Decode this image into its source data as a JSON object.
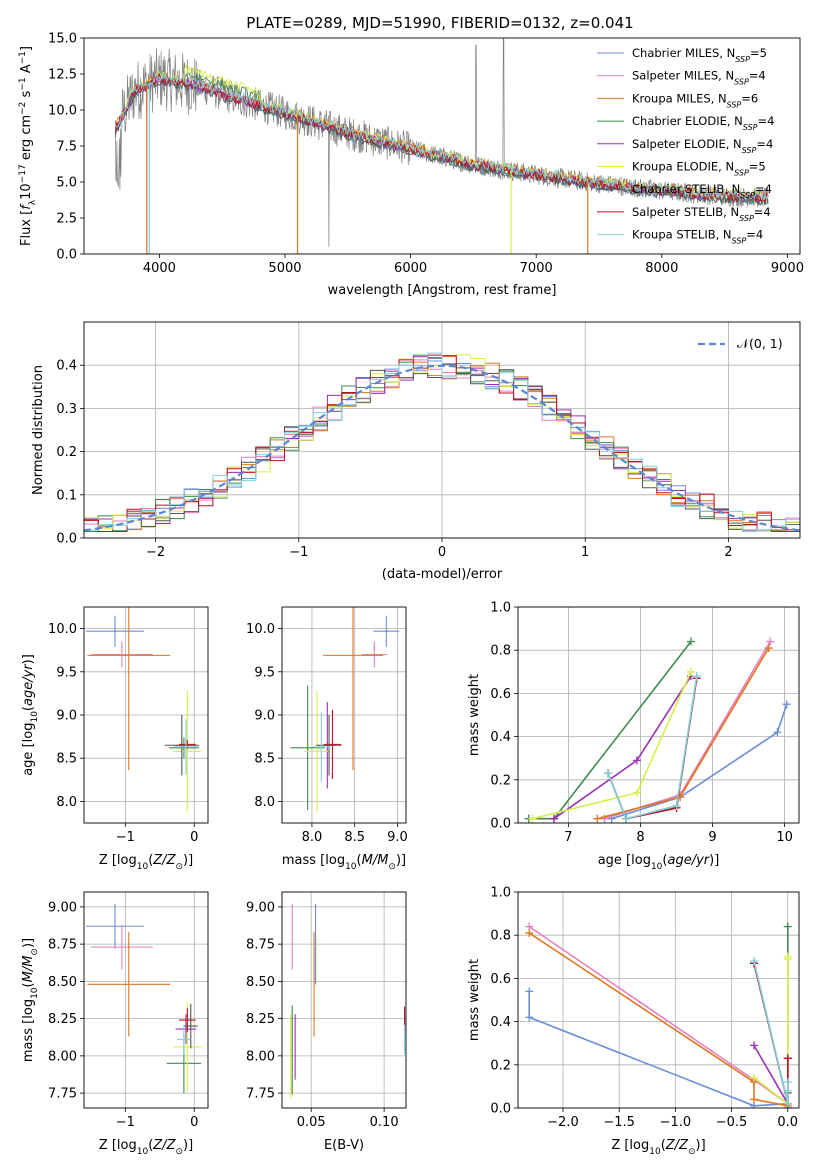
{
  "figure_title": "PLATE=0289, MJD=51990, FIBERID=0132, z=0.041",
  "colors": {
    "Chabrier MILES": "#6a8fd8",
    "Salpeter MILES": "#e77fbf",
    "Kroupa MILES": "#e0751d",
    "Chabrier ELODIE": "#3f8a4e",
    "Salpeter ELODIE": "#9b30b5",
    "Kroupa ELODIE": "#d6ee4a",
    "Chabrier STELIB": "#555555",
    "Salpeter STELIB": "#c0121b",
    "Kroupa STELIB": "#7fd1de",
    "data": "#808080",
    "normal": "#5b86d4"
  },
  "chart_data": [
    {
      "id": "spectrum",
      "type": "line",
      "title": "PLATE=0289, MJD=51990, FIBERID=0132, z=0.041",
      "xlabel": "wavelength [Angstrom, rest frame]",
      "ylabel": "Flux [fλ 10⁻¹⁷ erg cm⁻² s⁻¹ A⁻¹]",
      "xlim": [
        3400,
        9100
      ],
      "ylim": [
        0,
        15
      ],
      "xticks": [
        4000,
        5000,
        6000,
        7000,
        8000,
        9000
      ],
      "yticks": [
        0.0,
        2.5,
        5.0,
        7.5,
        10.0,
        12.5,
        15.0
      ],
      "grid": false,
      "legend_position": "top-right",
      "legend": [
        "Chabrier MILES, N_SSP=5",
        "Salpeter MILES, N_SSP=4",
        "Kroupa MILES, N_SSP=6",
        "Chabrier ELODIE, N_SSP=4",
        "Salpeter ELODIE, N_SSP=4",
        "Kroupa ELODIE, N_SSP=5",
        "Chabrier STELIB, N_SSP=4",
        "Salpeter STELIB, N_SSP=4",
        "Kroupa STELIB, N_SSP=4"
      ],
      "continuum_x": [
        3650,
        3800,
        4000,
        4300,
        4600,
        5000,
        5500,
        6000,
        6500,
        7000,
        7500,
        8000,
        8500,
        8850
      ],
      "continuum_y": [
        8.6,
        11.3,
        12.2,
        11.7,
        10.8,
        9.8,
        8.4,
        7.3,
        6.2,
        5.5,
        4.9,
        4.4,
        4.0,
        3.9
      ]
    },
    {
      "id": "residuals",
      "type": "line",
      "xlabel": "(data-model)/error",
      "ylabel": "Normed distribution",
      "xlim": [
        -2.5,
        2.5
      ],
      "ylim": [
        0,
        0.5
      ],
      "xticks": [
        -2,
        -1,
        0,
        1,
        2
      ],
      "yticks": [
        0.0,
        0.1,
        0.2,
        0.3,
        0.4
      ],
      "grid": true,
      "legend_position": "top-right",
      "legend": [
        "N(0,1)"
      ],
      "bin_width": 0.1
    },
    {
      "id": "age_vs_Z",
      "type": "scatter",
      "xlabel": "Z [log10(Z/Z⊙)]",
      "ylabel": "age [log10(age/yr)]",
      "xlim": [
        -1.6,
        0.2
      ],
      "ylim": [
        7.75,
        10.25
      ],
      "xticks": [
        -1,
        0
      ],
      "yticks": [
        8.0,
        8.5,
        9.0,
        9.5,
        10.0
      ],
      "grid": true,
      "errorbars": [
        {
          "series": "Chabrier MILES",
          "x": -1.15,
          "y": 9.97,
          "xerr": 0.42,
          "yerr": 0.18
        },
        {
          "series": "Salpeter MILES",
          "x": -1.05,
          "y": 9.7,
          "xerr": 0.45,
          "yerr": 0.15
        },
        {
          "series": "Kroupa MILES",
          "x": -0.95,
          "y": 9.69,
          "xerr": 0.6,
          "yerr": 1.33
        },
        {
          "series": "Chabrier ELODIE",
          "x": -0.15,
          "y": 8.62,
          "xerr": 0.22,
          "yerr": 0.12
        },
        {
          "series": "Salpeter ELODIE",
          "x": -0.12,
          "y": 8.65,
          "xerr": 0.15,
          "yerr": 0.08
        },
        {
          "series": "Kroupa ELODIE",
          "x": -0.1,
          "y": 8.58,
          "xerr": 0.2,
          "yerr": 0.7
        },
        {
          "series": "Chabrier STELIB",
          "x": -0.18,
          "y": 8.65,
          "xerr": 0.25,
          "yerr": 0.35
        },
        {
          "series": "Salpeter STELIB",
          "x": -0.1,
          "y": 8.66,
          "xerr": 0.12,
          "yerr": 0.05
        },
        {
          "series": "Kroupa STELIB",
          "x": -0.12,
          "y": 8.63,
          "xerr": 0.18,
          "yerr": 0.32
        }
      ]
    },
    {
      "id": "age_vs_mass",
      "type": "scatter",
      "xlabel": "mass [log10(M/M⊙)]",
      "ylabel": "",
      "xlim": [
        7.65,
        9.1
      ],
      "ylim": [
        7.75,
        10.25
      ],
      "xticks": [
        8.0,
        8.5,
        9.0
      ],
      "yticks": [
        8.0,
        8.5,
        9.0,
        9.5,
        10.0
      ],
      "grid": true,
      "errorbars": [
        {
          "series": "Chabrier MILES",
          "x": 8.87,
          "y": 9.97,
          "xerr": 0.15,
          "yerr": 0.18
        },
        {
          "series": "Salpeter MILES",
          "x": 8.73,
          "y": 9.7,
          "xerr": 0.15,
          "yerr": 0.15
        },
        {
          "series": "Kroupa MILES",
          "x": 8.48,
          "y": 9.69,
          "xerr": 0.35,
          "yerr": 1.33
        },
        {
          "series": "Chabrier ELODIE",
          "x": 7.95,
          "y": 8.62,
          "xerr": 0.2,
          "yerr": 0.72
        },
        {
          "series": "Salpeter ELODIE",
          "x": 8.18,
          "y": 8.65,
          "xerr": 0.1,
          "yerr": 0.5
        },
        {
          "series": "Kroupa ELODIE",
          "x": 8.06,
          "y": 8.58,
          "xerr": 0.15,
          "yerr": 0.7
        },
        {
          "series": "Chabrier STELIB",
          "x": 8.2,
          "y": 8.65,
          "xerr": 0.15,
          "yerr": 0.35
        },
        {
          "series": "Salpeter STELIB",
          "x": 8.24,
          "y": 8.66,
          "xerr": 0.1,
          "yerr": 0.4
        },
        {
          "series": "Kroupa STELIB",
          "x": 8.11,
          "y": 8.63,
          "xerr": 0.1,
          "yerr": 0.4
        }
      ]
    },
    {
      "id": "weight_vs_age",
      "type": "line",
      "xlabel": "age [log10(age/yr)]",
      "ylabel": "mass weight",
      "xlim": [
        6.3,
        10.2
      ],
      "ylim": [
        0,
        1
      ],
      "xticks": [
        7,
        8,
        9,
        10
      ],
      "yticks": [
        0.0,
        0.2,
        0.4,
        0.6,
        0.8,
        1.0
      ],
      "grid": true,
      "series": [
        {
          "name": "Chabrier MILES",
          "x": [
            7.6,
            8.55,
            9.9,
            10.03
          ],
          "y": [
            0.02,
            0.12,
            0.42,
            0.55
          ]
        },
        {
          "name": "Salpeter MILES",
          "x": [
            7.5,
            8.55,
            9.8
          ],
          "y": [
            0.02,
            0.13,
            0.84
          ]
        },
        {
          "name": "Kroupa MILES",
          "x": [
            7.4,
            8.55,
            9.78
          ],
          "y": [
            0.02,
            0.12,
            0.81
          ]
        },
        {
          "name": "Chabrier ELODIE",
          "x": [
            6.45,
            6.8,
            8.7
          ],
          "y": [
            0.02,
            0.02,
            0.84
          ]
        },
        {
          "name": "Salpeter ELODIE",
          "x": [
            6.8,
            7.95,
            8.7
          ],
          "y": [
            0.02,
            0.29,
            0.68
          ]
        },
        {
          "name": "Kroupa ELODIE",
          "x": [
            6.5,
            7.95,
            8.7
          ],
          "y": [
            0.02,
            0.14,
            0.7
          ]
        },
        {
          "name": "Chabrier STELIB",
          "x": [
            7.55,
            7.8,
            8.5,
            8.78
          ],
          "y": [
            0.23,
            0.02,
            0.07,
            0.67
          ]
        },
        {
          "name": "Salpeter STELIB",
          "x": [
            7.55,
            7.8,
            8.5,
            8.78
          ],
          "y": [
            0.23,
            0.02,
            0.07,
            0.67
          ]
        },
        {
          "name": "Kroupa STELIB",
          "x": [
            7.55,
            7.8,
            8.5,
            8.78
          ],
          "y": [
            0.23,
            0.02,
            0.08,
            0.68
          ]
        }
      ]
    },
    {
      "id": "mass_vs_Z",
      "type": "scatter",
      "xlabel": "Z [log10(Z/Z⊙)]",
      "ylabel": "mass [log10(M/M⊙)]",
      "xlim": [
        -1.6,
        0.2
      ],
      "ylim": [
        7.65,
        9.1
      ],
      "xticks": [
        -1,
        0
      ],
      "yticks": [
        7.75,
        8.0,
        8.25,
        8.5,
        8.75,
        9.0
      ],
      "grid": true,
      "errorbars": [
        {
          "series": "Chabrier MILES",
          "x": -1.15,
          "y": 8.87,
          "xerr": 0.42,
          "yerr": 0.15
        },
        {
          "series": "Salpeter MILES",
          "x": -1.05,
          "y": 8.73,
          "xerr": 0.45,
          "yerr": 0.15
        },
        {
          "series": "Kroupa MILES",
          "x": -0.95,
          "y": 8.48,
          "xerr": 0.6,
          "yerr": 0.35
        },
        {
          "series": "Chabrier ELODIE",
          "x": -0.15,
          "y": 7.95,
          "xerr": 0.25,
          "yerr": 0.2
        },
        {
          "series": "Salpeter ELODIE",
          "x": -0.12,
          "y": 8.18,
          "xerr": 0.15,
          "yerr": 0.1
        },
        {
          "series": "Kroupa ELODIE",
          "x": -0.1,
          "y": 8.06,
          "xerr": 0.2,
          "yerr": 0.3
        },
        {
          "series": "Chabrier STELIB",
          "x": -0.05,
          "y": 8.2,
          "xerr": 0.1,
          "yerr": 0.15
        },
        {
          "series": "Salpeter STELIB",
          "x": -0.1,
          "y": 8.24,
          "xerr": 0.12,
          "yerr": 0.08
        },
        {
          "series": "Kroupa STELIB",
          "x": -0.15,
          "y": 8.11,
          "xerr": 0.1,
          "yerr": 0.1
        }
      ]
    },
    {
      "id": "mass_vs_ebv",
      "type": "scatter",
      "xlabel": "E(B-V)",
      "ylabel": "",
      "xlim": [
        0.03,
        0.115
      ],
      "ylim": [
        7.65,
        9.1
      ],
      "xticks": [
        0.05,
        0.1
      ],
      "yticks": [
        7.75,
        8.0,
        8.25,
        8.5,
        8.75,
        9.0
      ],
      "grid": true,
      "errorbars": [
        {
          "series": "Chabrier MILES",
          "x": 0.053,
          "y": 8.75,
          "xerr": 0,
          "yerr": 0.27
        },
        {
          "series": "Salpeter MILES",
          "x": 0.037,
          "y": 8.8,
          "xerr": 0,
          "yerr": 0.22
        },
        {
          "series": "Kroupa MILES",
          "x": 0.052,
          "y": 8.48,
          "xerr": 0,
          "yerr": 0.35
        },
        {
          "series": "Chabrier ELODIE",
          "x": 0.037,
          "y": 8.04,
          "xerr": 0,
          "yerr": 0.3
        },
        {
          "series": "Salpeter ELODIE",
          "x": 0.039,
          "y": 8.06,
          "xerr": 0,
          "yerr": 0.22
        },
        {
          "series": "Kroupa ELODIE",
          "x": 0.036,
          "y": 8.0,
          "xerr": 0,
          "yerr": 0.28
        },
        {
          "series": "Chabrier STELIB",
          "x": 0.114,
          "y": 8.2,
          "xerr": 0,
          "yerr": 0.1
        },
        {
          "series": "Salpeter STELIB",
          "x": 0.114,
          "y": 8.25,
          "xerr": 0,
          "yerr": 0.08
        },
        {
          "series": "Kroupa STELIB",
          "x": 0.114,
          "y": 8.11,
          "xerr": 0,
          "yerr": 0.1
        }
      ]
    },
    {
      "id": "weight_vs_Z",
      "type": "line",
      "xlabel": "Z [log10(Z/Z⊙)]",
      "ylabel": "mass weight",
      "xlim": [
        -2.4,
        0.1
      ],
      "ylim": [
        0,
        1
      ],
      "xticks": [
        -2.0,
        -1.5,
        -1.0,
        -0.5,
        0.0
      ],
      "yticks": [
        0.0,
        0.2,
        0.4,
        0.6,
        0.8,
        1.0
      ],
      "grid": true,
      "series": [
        {
          "name": "Chabrier MILES",
          "x": [
            -2.3,
            -2.3,
            -0.3,
            0.0
          ],
          "y": [
            0.54,
            0.42,
            0.01,
            0.02
          ]
        },
        {
          "name": "Salpeter MILES",
          "x": [
            -2.3,
            -0.3,
            0.0
          ],
          "y": [
            0.84,
            0.13,
            0.02
          ]
        },
        {
          "name": "Kroupa MILES",
          "x": [
            -2.3,
            -0.3,
            -0.3,
            0.0
          ],
          "y": [
            0.81,
            0.12,
            0.04,
            0.01
          ]
        },
        {
          "name": "Chabrier ELODIE",
          "x": [
            0.0,
            0.0,
            0.0
          ],
          "y": [
            0.84,
            0.02,
            0.0
          ]
        },
        {
          "name": "Salpeter ELODIE",
          "x": [
            -0.3,
            0.0,
            0.0
          ],
          "y": [
            0.29,
            0.02,
            0.0
          ]
        },
        {
          "name": "Kroupa ELODIE",
          "x": [
            -0.3,
            0.0,
            0.0,
            0.0
          ],
          "y": [
            0.14,
            0.02,
            0.7,
            0.69
          ]
        },
        {
          "name": "Chabrier STELIB",
          "x": [
            -0.3,
            0.0,
            0.0,
            0.0
          ],
          "y": [
            0.67,
            0.02,
            0.23,
            0.07
          ]
        },
        {
          "name": "Salpeter STELIB",
          "x": [
            -0.3,
            0.0,
            0.0
          ],
          "y": [
            0.67,
            0.02,
            0.23
          ]
        },
        {
          "name": "Kroupa STELIB",
          "x": [
            -0.3,
            0.0,
            0.0,
            0.0
          ],
          "y": [
            0.68,
            0.02,
            0.12,
            0.08
          ]
        }
      ]
    }
  ]
}
